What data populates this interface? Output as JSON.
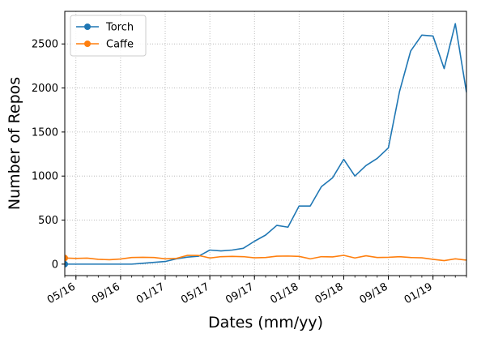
{
  "chart_data": {
    "type": "line",
    "title": "",
    "xlabel": "Dates (mm/yy)",
    "ylabel": "Number of Repos",
    "x_tick_labels": [
      "05/16",
      "09/16",
      "01/17",
      "05/17",
      "09/17",
      "01/18",
      "05/18",
      "09/18",
      "01/19"
    ],
    "y_tick_labels": [
      "0",
      "500",
      "1000",
      "1500",
      "2000",
      "2500"
    ],
    "ylim": [
      -130,
      2870
    ],
    "y_ticks": [
      0,
      500,
      1000,
      1500,
      2000,
      2500
    ],
    "grid": true,
    "legend_position": "top-left",
    "x": [
      "2016-04",
      "2016-05",
      "2016-06",
      "2016-07",
      "2016-08",
      "2016-09",
      "2016-10",
      "2016-11",
      "2016-12",
      "2017-01",
      "2017-02",
      "2017-03",
      "2017-04",
      "2017-05",
      "2017-06",
      "2017-07",
      "2017-08",
      "2017-09",
      "2017-10",
      "2017-11",
      "2017-12",
      "2018-01",
      "2018-02",
      "2018-03",
      "2018-04",
      "2018-05",
      "2018-06",
      "2018-07",
      "2018-08",
      "2018-09",
      "2018-10",
      "2018-11",
      "2018-12",
      "2019-01",
      "2019-02",
      "2019-03",
      "2019-04"
    ],
    "series": [
      {
        "name": "Torch",
        "color": "#1f77b4",
        "values": [
          0,
          0,
          0,
          0,
          0,
          0,
          0,
          10,
          20,
          30,
          60,
          80,
          90,
          160,
          150,
          160,
          180,
          260,
          330,
          440,
          420,
          660,
          660,
          880,
          980,
          1190,
          1000,
          1120,
          1200,
          1320,
          1960,
          2420,
          2600,
          2590,
          2220,
          2730,
          1950
        ]
      },
      {
        "name": "Caffe",
        "color": "#ff7f0e",
        "values": [
          70,
          65,
          68,
          55,
          50,
          58,
          75,
          78,
          75,
          60,
          65,
          100,
          98,
          70,
          85,
          88,
          85,
          72,
          75,
          90,
          92,
          88,
          60,
          85,
          82,
          100,
          70,
          95,
          75,
          78,
          85,
          75,
          72,
          55,
          40,
          60,
          45
        ]
      }
    ]
  }
}
